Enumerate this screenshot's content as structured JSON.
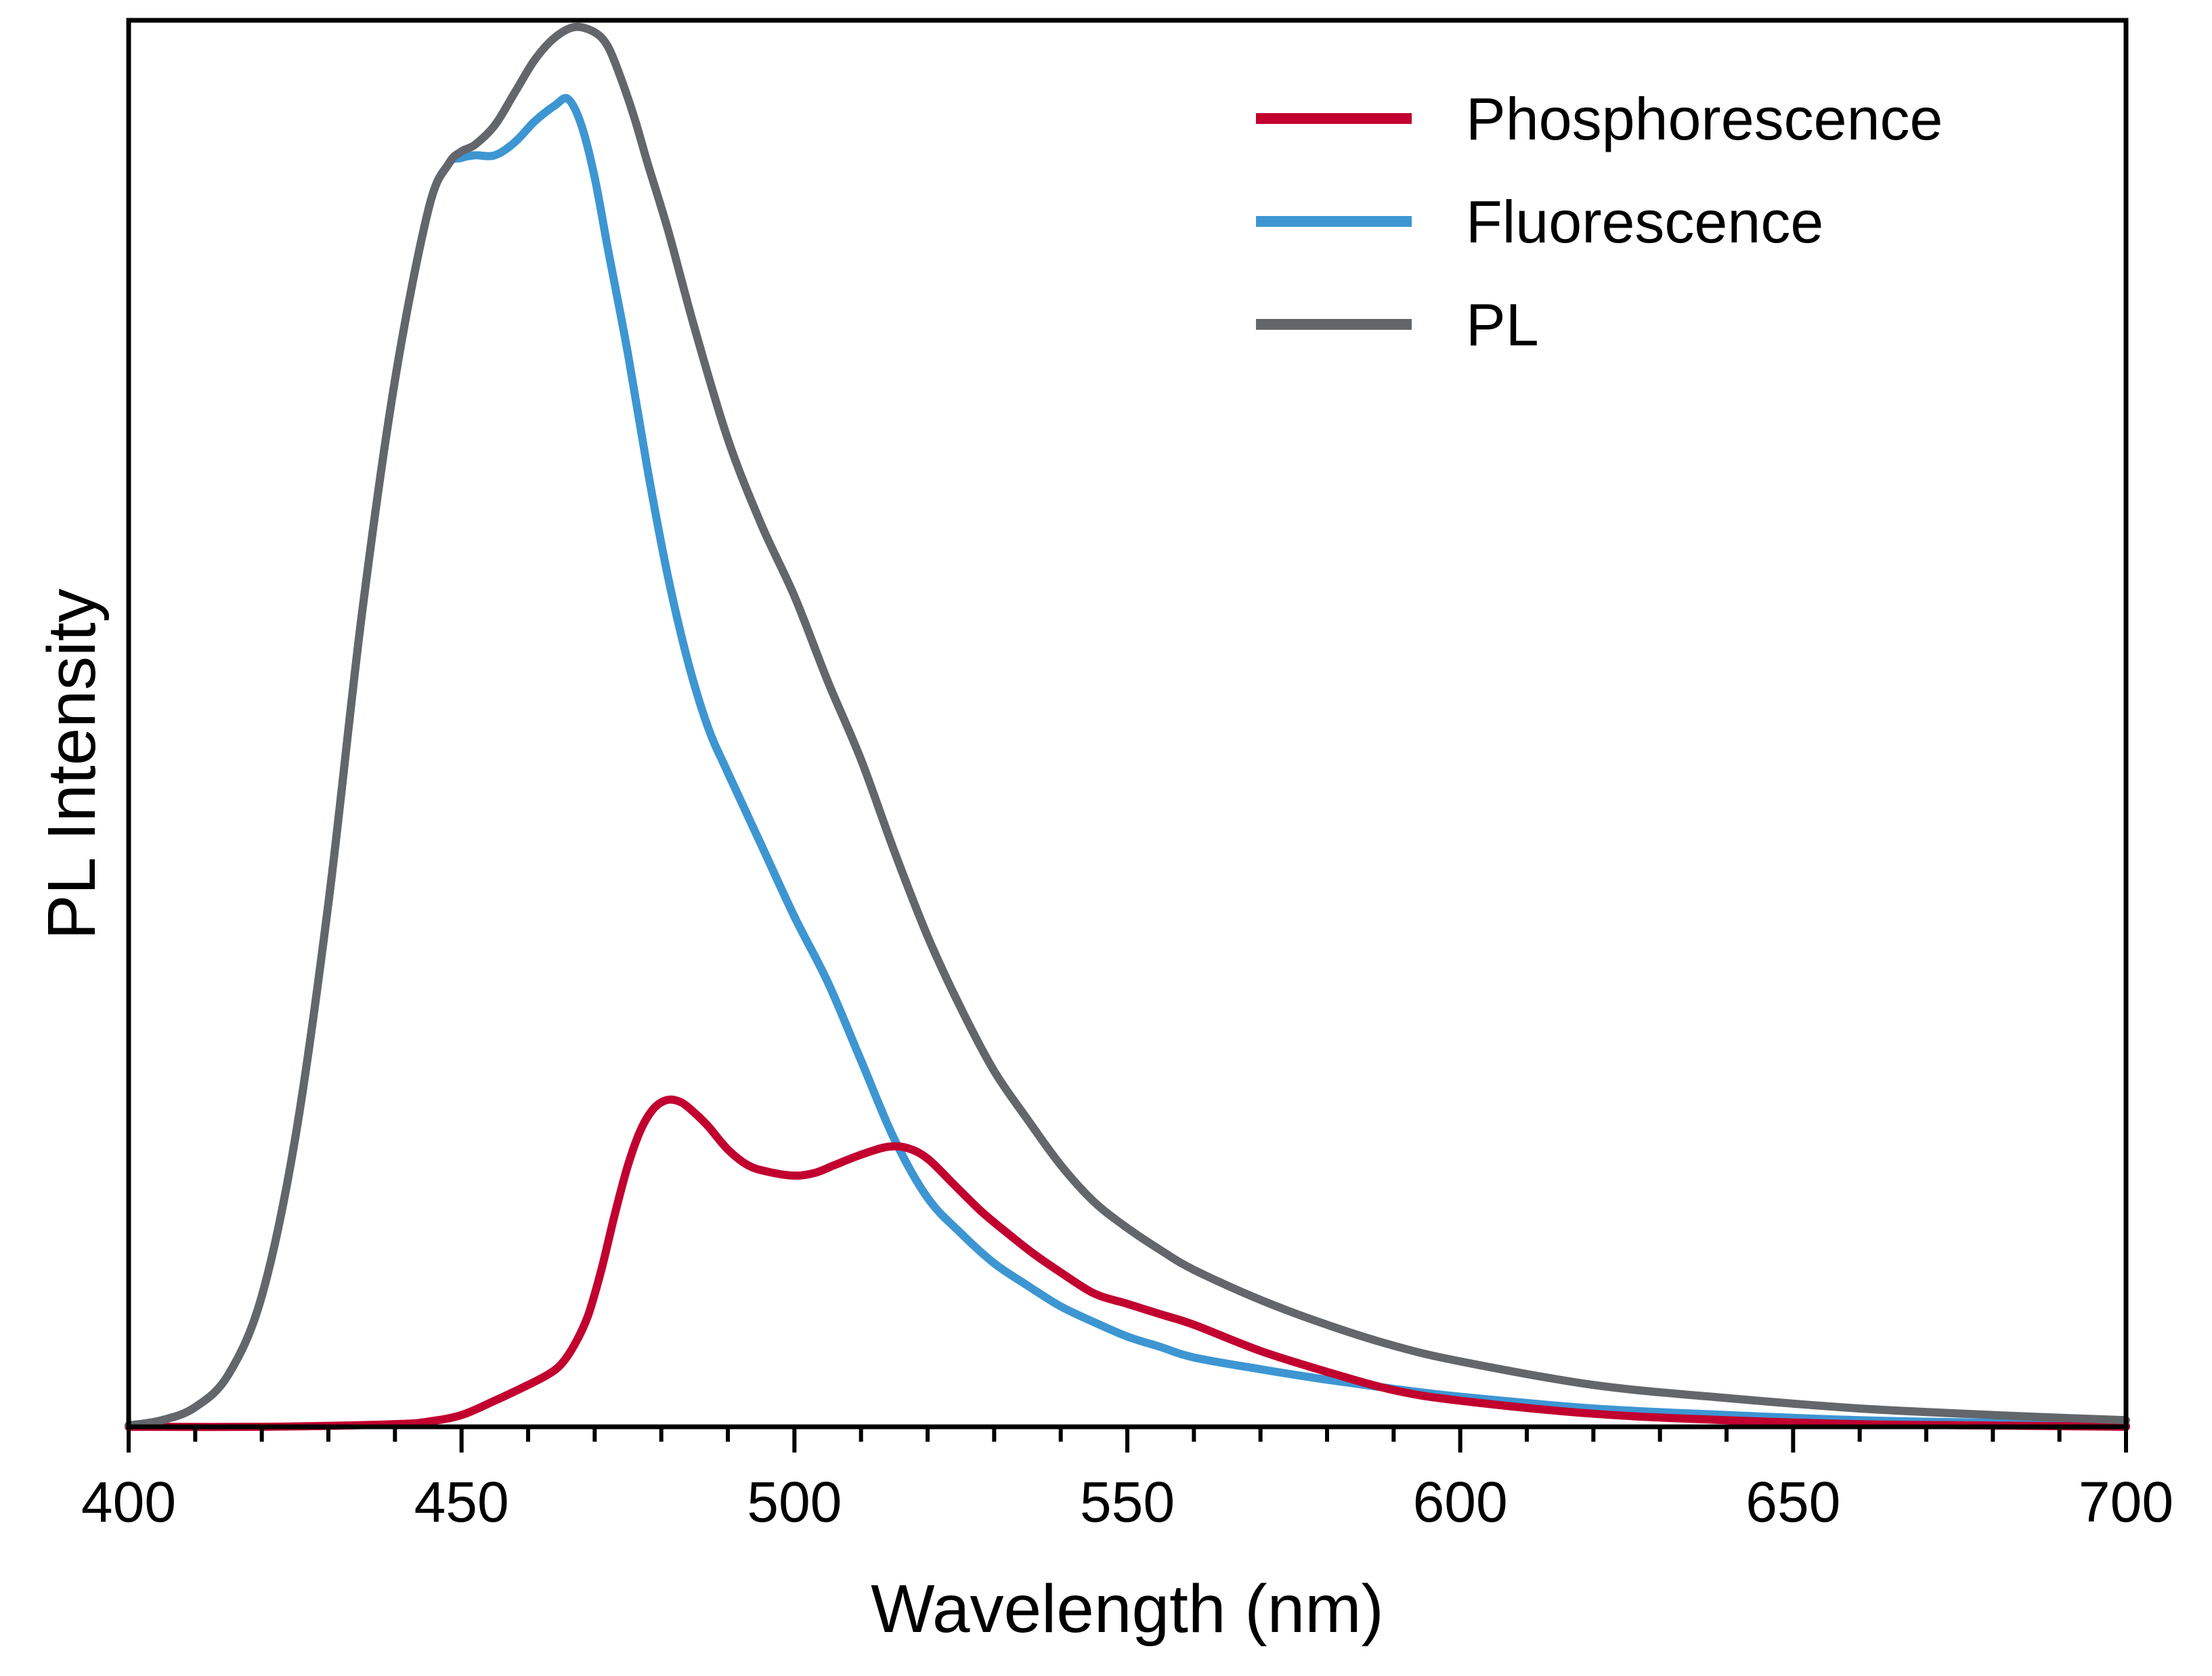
{
  "chart_data": {
    "type": "line",
    "xlabel": "Wavelength (nm)",
    "ylabel": "PL Intensity",
    "xlim": [
      400,
      700
    ],
    "ylim": [
      0,
      1.07
    ],
    "xticks": [
      "400",
      "450",
      "500",
      "550",
      "600",
      "650",
      "700"
    ],
    "yticks_shown": false,
    "grid": false,
    "legend_position": "top-right",
    "series": [
      {
        "name": "Phosphorescence",
        "color": "#c1002f",
        "x": [
          400,
          420,
          440,
          445,
          450,
          455,
          460,
          463,
          465,
          467,
          469,
          471,
          473,
          475,
          477,
          479,
          481,
          483,
          485,
          487,
          490,
          493,
          496,
          500,
          503,
          506,
          510,
          514,
          517,
          520,
          524,
          528,
          532,
          536,
          540,
          545,
          550,
          555,
          560,
          570,
          580,
          590,
          600,
          620,
          640,
          660,
          680,
          700
        ],
        "y": [
          0,
          0,
          0.002,
          0.004,
          0.009,
          0.02,
          0.032,
          0.04,
          0.048,
          0.063,
          0.085,
          0.12,
          0.162,
          0.2,
          0.228,
          0.244,
          0.25,
          0.248,
          0.24,
          0.23,
          0.212,
          0.2,
          0.195,
          0.192,
          0.194,
          0.2,
          0.208,
          0.214,
          0.213,
          0.205,
          0.185,
          0.165,
          0.148,
          0.132,
          0.118,
          0.102,
          0.094,
          0.086,
          0.078,
          0.058,
          0.042,
          0.028,
          0.02,
          0.01,
          0.005,
          0.002,
          0.001,
          0
        ]
      },
      {
        "name": "Fluorescence",
        "color": "#3d96d2",
        "x": [
          400,
          405,
          410,
          415,
          420,
          425,
          430,
          435,
          440,
          445,
          448,
          450,
          452,
          455,
          458,
          461,
          464,
          466,
          468,
          470,
          472,
          475,
          478,
          481,
          484,
          487,
          490,
          495,
          500,
          505,
          510,
          515,
          520,
          525,
          530,
          535,
          540,
          545,
          550,
          555,
          560,
          570,
          580,
          590,
          600,
          620,
          640,
          660,
          680,
          700
        ],
        "y": [
          0.001,
          0.005,
          0.015,
          0.04,
          0.1,
          0.22,
          0.4,
          0.62,
          0.8,
          0.93,
          0.965,
          0.97,
          0.972,
          0.972,
          0.982,
          0.998,
          1.01,
          1.015,
          0.995,
          0.955,
          0.9,
          0.82,
          0.73,
          0.65,
          0.585,
          0.535,
          0.5,
          0.445,
          0.39,
          0.34,
          0.28,
          0.22,
          0.175,
          0.148,
          0.125,
          0.108,
          0.092,
          0.08,
          0.069,
          0.061,
          0.053,
          0.044,
          0.036,
          0.029,
          0.023,
          0.014,
          0.009,
          0.005,
          0.003,
          0.001
        ]
      },
      {
        "name": "PL",
        "color": "#63666a",
        "x": [
          400,
          405,
          410,
          415,
          420,
          425,
          430,
          435,
          440,
          445,
          448,
          450,
          452,
          455,
          458,
          461,
          464,
          467,
          470,
          472,
          474,
          476,
          478,
          481,
          485,
          490,
          495,
          500,
          505,
          510,
          515,
          520,
          525,
          530,
          535,
          540,
          545,
          550,
          555,
          560,
          570,
          580,
          590,
          600,
          620,
          640,
          660,
          680,
          700
        ],
        "y": [
          0.001,
          0.005,
          0.015,
          0.04,
          0.1,
          0.22,
          0.4,
          0.62,
          0.8,
          0.93,
          0.965,
          0.975,
          0.98,
          0.995,
          1.02,
          1.045,
          1.062,
          1.07,
          1.066,
          1.055,
          1.03,
          1.0,
          0.965,
          0.915,
          0.84,
          0.755,
          0.69,
          0.635,
          0.57,
          0.51,
          0.44,
          0.375,
          0.32,
          0.272,
          0.235,
          0.2,
          0.172,
          0.152,
          0.135,
          0.12,
          0.097,
          0.078,
          0.062,
          0.05,
          0.032,
          0.022,
          0.014,
          0.009,
          0.005
        ]
      }
    ]
  }
}
